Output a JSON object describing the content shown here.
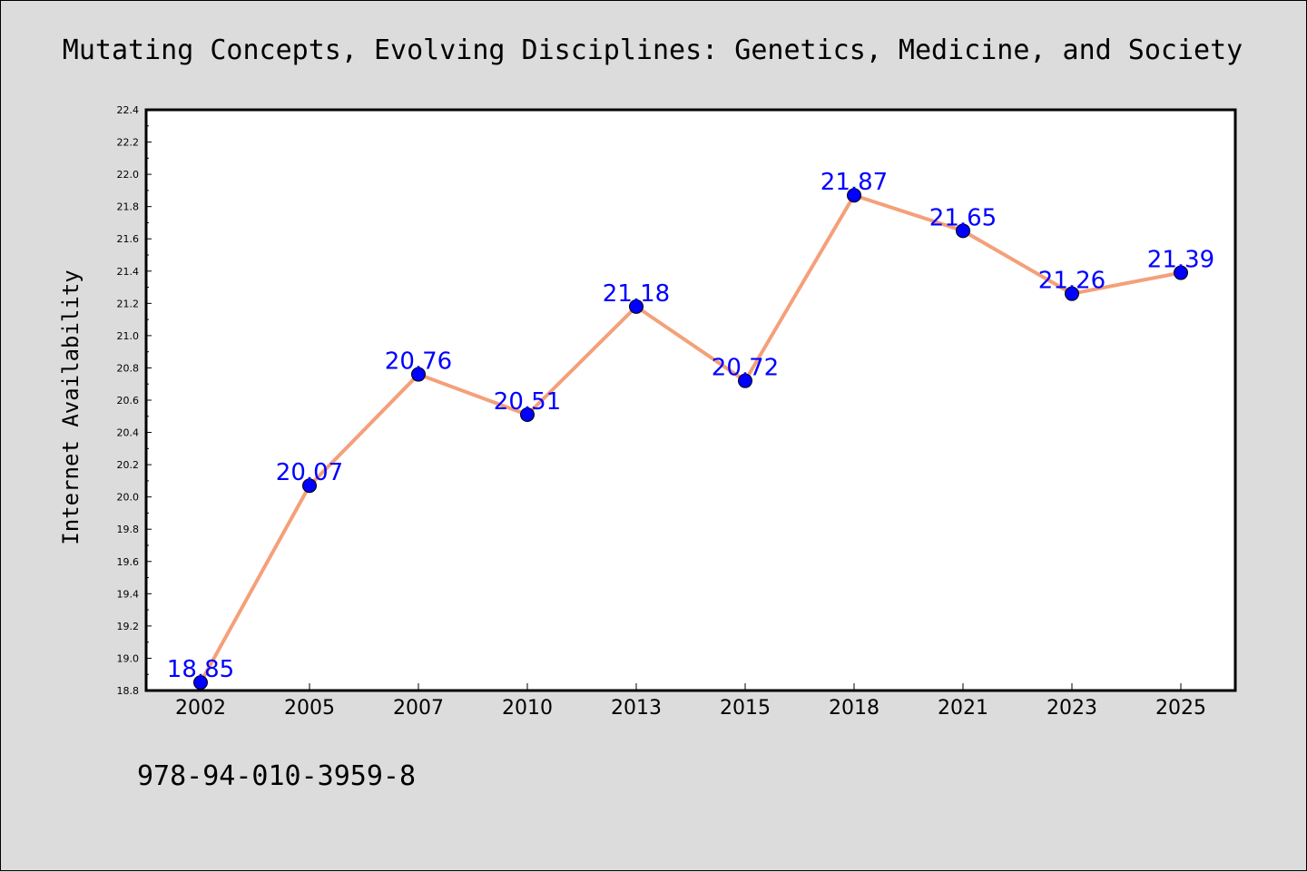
{
  "chart_data": {
    "type": "line",
    "title": "Mutating Concepts, Evolving Disciplines: Genetics, Medicine, and Society",
    "xlabel": "",
    "ylabel": "Internet Availability",
    "categories": [
      "2002",
      "2005",
      "2007",
      "2010",
      "2013",
      "2015",
      "2018",
      "2021",
      "2023",
      "2025"
    ],
    "values": [
      18.85,
      20.07,
      20.76,
      20.51,
      21.18,
      20.72,
      21.87,
      21.65,
      21.26,
      21.39
    ],
    "data_labels": [
      "18.85",
      "20.07",
      "20.76",
      "20.51",
      "21.18",
      "20.72",
      "21.87",
      "21.65",
      "21.26",
      "21.39"
    ],
    "ylim": [
      18.8,
      22.4
    ],
    "yticks": [
      "18.8",
      "19.0",
      "19.2",
      "19.4",
      "19.6",
      "19.8",
      "20.0",
      "20.2",
      "20.4",
      "20.6",
      "20.8",
      "21.0",
      "21.2",
      "21.4",
      "21.6",
      "21.8",
      "22.0",
      "22.2",
      "22.4"
    ],
    "grid": false,
    "legend": "none",
    "line_color": "#f4a07a",
    "marker_color": "#0000ff",
    "label_color": "#0000ff"
  },
  "footer": {
    "isbn": "978-94-010-3959-8"
  }
}
